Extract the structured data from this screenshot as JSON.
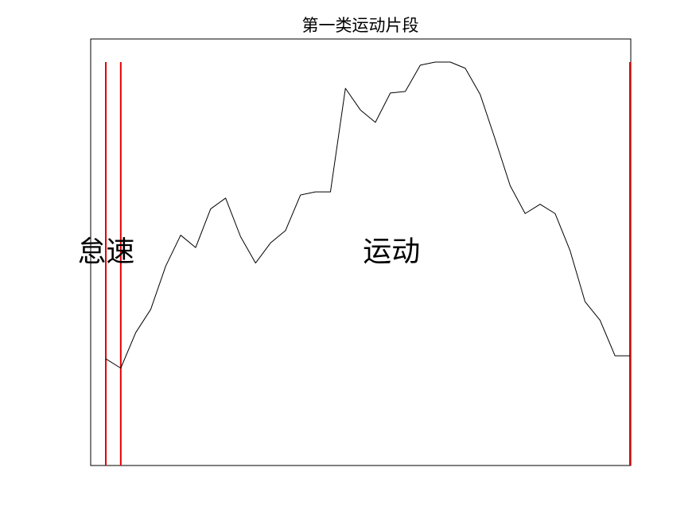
{
  "chart_data": {
    "type": "line",
    "title": "第一类运动片段",
    "xlabel": "",
    "ylabel": "",
    "xlim": [
      1,
      36
    ],
    "ylim": [
      0,
      26.1
    ],
    "grid": false,
    "axes_box": true,
    "ticks_visible": false,
    "x": [
      1,
      2,
      3,
      4,
      5,
      6,
      7,
      8,
      9,
      10,
      11,
      12,
      13,
      14,
      15,
      16,
      17,
      18,
      19,
      20,
      21,
      22,
      23,
      24,
      25,
      26,
      27,
      28,
      29,
      30,
      31,
      32,
      33,
      34,
      35,
      36
    ],
    "series": [
      {
        "values": [
          6.9,
          6.3,
          8.6,
          10.1,
          12.9,
          14.9,
          14.1,
          16.6,
          17.3,
          14.8,
          13.1,
          14.4,
          15.2,
          17.5,
          17.7,
          17.7,
          24.4,
          23.0,
          22.2,
          24.1,
          24.2,
          25.9,
          26.1,
          26.1,
          25.7,
          24.0,
          21.1,
          18.1,
          16.3,
          16.9,
          16.3,
          13.9,
          10.6,
          9.4,
          7.1,
          7.1
        ],
        "color": "#000000"
      }
    ],
    "segment_boundaries": [
      {
        "x": 1,
        "color": "#e00000"
      },
      {
        "x": 2,
        "color": "#e00000"
      },
      {
        "x": 36,
        "color": "#e00000"
      }
    ],
    "annotations": [
      {
        "text": "怠速",
        "x": 2,
        "y": 13.1
      },
      {
        "text": "运动",
        "x": 20.5,
        "y": 13.1
      }
    ]
  }
}
